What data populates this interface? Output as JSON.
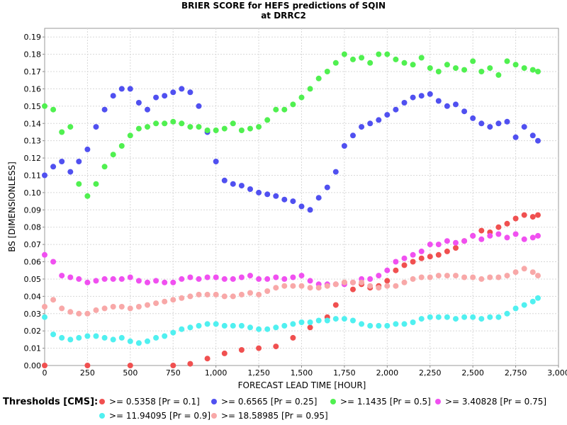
{
  "chart_data": {
    "type": "scatter",
    "title": "BRIER SCORE for HEFS predictions of SQIN",
    "subtitle": "at DRRC2",
    "xlabel": "FORECAST LEAD TIME [HOUR]",
    "ylabel": "BS [DIMENSIONLESS]",
    "xlim": [
      0,
      3000
    ],
    "ylim": [
      0.0,
      0.195
    ],
    "xticks": [
      "0",
      "250",
      "500",
      "750",
      "1,000",
      "1,250",
      "1,500",
      "1,750",
      "2,000",
      "2,250",
      "2,500",
      "2,750",
      "3,000"
    ],
    "yticks": [
      "0.00",
      "0.01",
      "0.02",
      "0.03",
      "0.04",
      "0.05",
      "0.06",
      "0.07",
      "0.08",
      "0.09",
      "0.10",
      "0.11",
      "0.12",
      "0.13",
      "0.14",
      "0.15",
      "0.16",
      "0.17",
      "0.18",
      "0.19"
    ],
    "grid": true,
    "legend_title": "Thresholds [CMS]:",
    "legend_position": "bottom",
    "series": [
      {
        "name": ">= 0.5358 [Pr = 0.1]",
        "color": "#f05050",
        "x": [
          0,
          250,
          500,
          750,
          850,
          950,
          1050,
          1150,
          1250,
          1350,
          1450,
          1550,
          1650,
          1700,
          1750,
          1800,
          1850,
          1900,
          1950,
          2000,
          2050,
          2100,
          2150,
          2200,
          2250,
          2300,
          2350,
          2400,
          2450,
          2500,
          2550,
          2600,
          2650,
          2700,
          2750,
          2800,
          2850,
          2880
        ],
        "y": [
          0.0,
          0.0,
          0.0,
          0.0,
          0.001,
          0.004,
          0.007,
          0.009,
          0.01,
          0.011,
          0.016,
          0.022,
          0.028,
          0.035,
          0.048,
          0.044,
          0.047,
          0.045,
          0.046,
          0.049,
          0.055,
          0.058,
          0.06,
          0.062,
          0.063,
          0.064,
          0.066,
          0.068,
          0.072,
          0.075,
          0.078,
          0.077,
          0.08,
          0.082,
          0.085,
          0.087,
          0.086,
          0.087
        ]
      },
      {
        "name": ">= 0.6565 [Pr = 0.25]",
        "color": "#5050f0",
        "x": [
          0,
          50,
          100,
          150,
          200,
          250,
          300,
          350,
          400,
          450,
          500,
          550,
          600,
          650,
          700,
          750,
          800,
          850,
          900,
          950,
          1000,
          1050,
          1100,
          1150,
          1200,
          1250,
          1300,
          1350,
          1400,
          1450,
          1500,
          1550,
          1600,
          1650,
          1700,
          1750,
          1800,
          1850,
          1900,
          1950,
          2000,
          2050,
          2100,
          2150,
          2200,
          2250,
          2300,
          2350,
          2400,
          2450,
          2500,
          2550,
          2600,
          2650,
          2700,
          2750,
          2800,
          2850,
          2880
        ],
        "y": [
          0.11,
          0.115,
          0.118,
          0.112,
          0.118,
          0.125,
          0.138,
          0.148,
          0.156,
          0.16,
          0.16,
          0.152,
          0.148,
          0.155,
          0.156,
          0.158,
          0.16,
          0.158,
          0.15,
          0.135,
          0.118,
          0.107,
          0.105,
          0.104,
          0.102,
          0.1,
          0.099,
          0.098,
          0.096,
          0.095,
          0.092,
          0.09,
          0.097,
          0.103,
          0.112,
          0.127,
          0.133,
          0.138,
          0.14,
          0.142,
          0.145,
          0.148,
          0.152,
          0.155,
          0.156,
          0.157,
          0.153,
          0.15,
          0.151,
          0.147,
          0.143,
          0.14,
          0.138,
          0.14,
          0.141,
          0.132,
          0.138,
          0.133,
          0.13
        ]
      },
      {
        "name": ">= 1.1435 [Pr = 0.5]",
        "color": "#50f050",
        "x": [
          0,
          50,
          100,
          150,
          200,
          250,
          300,
          350,
          400,
          450,
          500,
          550,
          600,
          650,
          700,
          750,
          800,
          850,
          900,
          950,
          1000,
          1050,
          1100,
          1150,
          1200,
          1250,
          1300,
          1350,
          1400,
          1450,
          1500,
          1550,
          1600,
          1650,
          1700,
          1750,
          1800,
          1850,
          1900,
          1950,
          2000,
          2050,
          2100,
          2150,
          2200,
          2250,
          2300,
          2350,
          2400,
          2450,
          2500,
          2550,
          2600,
          2650,
          2700,
          2750,
          2800,
          2850,
          2880
        ],
        "y": [
          0.15,
          0.148,
          0.135,
          0.138,
          0.105,
          0.098,
          0.105,
          0.115,
          0.122,
          0.127,
          0.133,
          0.137,
          0.138,
          0.14,
          0.14,
          0.141,
          0.14,
          0.138,
          0.138,
          0.136,
          0.136,
          0.137,
          0.14,
          0.136,
          0.137,
          0.138,
          0.142,
          0.148,
          0.148,
          0.151,
          0.155,
          0.16,
          0.166,
          0.17,
          0.175,
          0.18,
          0.177,
          0.178,
          0.175,
          0.18,
          0.18,
          0.177,
          0.175,
          0.174,
          0.178,
          0.172,
          0.17,
          0.174,
          0.172,
          0.171,
          0.176,
          0.17,
          0.172,
          0.168,
          0.176,
          0.174,
          0.172,
          0.171,
          0.17
        ]
      },
      {
        "name": ">= 3.40828 [Pr = 0.75]",
        "color": "#f050f0",
        "x": [
          0,
          50,
          100,
          150,
          200,
          250,
          300,
          350,
          400,
          450,
          500,
          550,
          600,
          650,
          700,
          750,
          800,
          850,
          900,
          950,
          1000,
          1050,
          1100,
          1150,
          1200,
          1250,
          1300,
          1350,
          1400,
          1450,
          1500,
          1550,
          1600,
          1650,
          1700,
          1750,
          1800,
          1850,
          1900,
          1950,
          2000,
          2050,
          2100,
          2150,
          2200,
          2250,
          2300,
          2350,
          2400,
          2450,
          2500,
          2550,
          2600,
          2650,
          2700,
          2750,
          2800,
          2850,
          2880
        ],
        "y": [
          0.064,
          0.06,
          0.052,
          0.051,
          0.05,
          0.048,
          0.049,
          0.05,
          0.05,
          0.05,
          0.051,
          0.049,
          0.048,
          0.049,
          0.048,
          0.048,
          0.05,
          0.051,
          0.05,
          0.051,
          0.051,
          0.05,
          0.05,
          0.051,
          0.052,
          0.05,
          0.05,
          0.051,
          0.05,
          0.051,
          0.052,
          0.049,
          0.047,
          0.047,
          0.047,
          0.047,
          0.048,
          0.05,
          0.05,
          0.052,
          0.055,
          0.06,
          0.062,
          0.064,
          0.066,
          0.07,
          0.07,
          0.072,
          0.071,
          0.072,
          0.075,
          0.073,
          0.075,
          0.076,
          0.074,
          0.076,
          0.073,
          0.074,
          0.075
        ]
      },
      {
        "name": ">= 11.94095 [Pr = 0.9]",
        "color": "#50f0f0",
        "x": [
          0,
          50,
          100,
          150,
          200,
          250,
          300,
          350,
          400,
          450,
          500,
          550,
          600,
          650,
          700,
          750,
          800,
          850,
          900,
          950,
          1000,
          1050,
          1100,
          1150,
          1200,
          1250,
          1300,
          1350,
          1400,
          1450,
          1500,
          1550,
          1600,
          1650,
          1700,
          1750,
          1800,
          1850,
          1900,
          1950,
          2000,
          2050,
          2100,
          2150,
          2200,
          2250,
          2300,
          2350,
          2400,
          2450,
          2500,
          2550,
          2600,
          2650,
          2700,
          2750,
          2800,
          2850,
          2880
        ],
        "y": [
          0.028,
          0.018,
          0.016,
          0.015,
          0.016,
          0.017,
          0.017,
          0.016,
          0.015,
          0.016,
          0.014,
          0.013,
          0.014,
          0.016,
          0.017,
          0.019,
          0.021,
          0.022,
          0.023,
          0.024,
          0.024,
          0.023,
          0.023,
          0.023,
          0.022,
          0.021,
          0.021,
          0.022,
          0.023,
          0.024,
          0.025,
          0.025,
          0.026,
          0.026,
          0.027,
          0.027,
          0.026,
          0.024,
          0.023,
          0.023,
          0.023,
          0.024,
          0.024,
          0.025,
          0.027,
          0.028,
          0.028,
          0.028,
          0.027,
          0.028,
          0.028,
          0.027,
          0.028,
          0.028,
          0.03,
          0.033,
          0.035,
          0.037,
          0.039
        ]
      },
      {
        "name": ">= 18.58985 [Pr = 0.95]",
        "color": "#f8a8a8",
        "x": [
          0,
          50,
          100,
          150,
          200,
          250,
          300,
          350,
          400,
          450,
          500,
          550,
          600,
          650,
          700,
          750,
          800,
          850,
          900,
          950,
          1000,
          1050,
          1100,
          1150,
          1200,
          1250,
          1300,
          1350,
          1400,
          1450,
          1500,
          1550,
          1600,
          1650,
          1700,
          1750,
          1800,
          1850,
          1900,
          1950,
          2000,
          2050,
          2100,
          2150,
          2200,
          2250,
          2300,
          2350,
          2400,
          2450,
          2500,
          2550,
          2600,
          2650,
          2700,
          2750,
          2800,
          2850,
          2880
        ],
        "y": [
          0.034,
          0.038,
          0.033,
          0.031,
          0.03,
          0.03,
          0.032,
          0.033,
          0.034,
          0.034,
          0.033,
          0.034,
          0.035,
          0.036,
          0.037,
          0.038,
          0.039,
          0.04,
          0.041,
          0.041,
          0.041,
          0.04,
          0.04,
          0.041,
          0.042,
          0.041,
          0.043,
          0.045,
          0.046,
          0.046,
          0.046,
          0.045,
          0.045,
          0.046,
          0.047,
          0.048,
          0.048,
          0.048,
          0.046,
          0.045,
          0.046,
          0.046,
          0.048,
          0.05,
          0.051,
          0.051,
          0.052,
          0.052,
          0.052,
          0.051,
          0.051,
          0.05,
          0.051,
          0.051,
          0.052,
          0.054,
          0.056,
          0.054,
          0.052
        ]
      }
    ]
  }
}
